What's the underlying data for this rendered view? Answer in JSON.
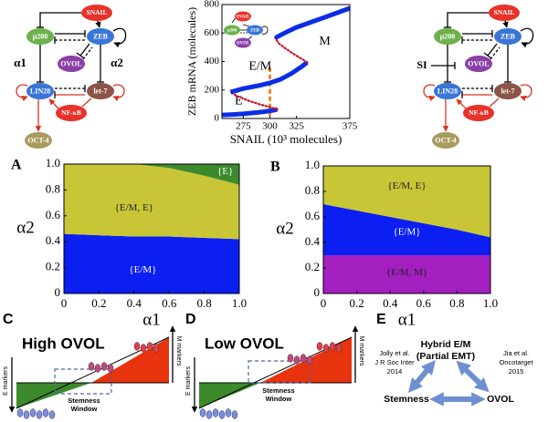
{
  "left_network": {
    "nodes": [
      "SNAIL",
      "μ200",
      "ZEB",
      "OVOL",
      "LIN28",
      "let-7",
      "NF-κB",
      "OCT-4"
    ],
    "edge_labels": [
      "α1",
      "α2"
    ]
  },
  "right_network": {
    "nodes": [
      "SNAIL",
      "μ200",
      "ZEB",
      "OVOL",
      "LIN28",
      "let-7",
      "NF-κB",
      "OCT-4"
    ],
    "input_label": "SI"
  },
  "chart_data": [
    {
      "type": "line",
      "x_label": "SNAIL (10³ molecules)",
      "y_label": "ZEB mRNA (molecules)",
      "xlim": [
        255,
        375
      ],
      "xticks": [
        275,
        300,
        325,
        375
      ],
      "ylim": [
        0,
        800
      ],
      "yticks": [
        0,
        200,
        400,
        600,
        800
      ],
      "series": [
        {
          "name": "E",
          "color": "#0a2ee6",
          "style": "solid",
          "x": [
            255,
            265,
            275,
            285,
            295,
            302,
            307
          ],
          "values": [
            25,
            28,
            33,
            40,
            48,
            56,
            64
          ]
        },
        {
          "color": "#d0112b",
          "style": "dotted",
          "x": [
            307,
            300,
            290,
            280,
            270,
            263
          ],
          "values": [
            64,
            80,
            100,
            125,
            155,
            185
          ]
        },
        {
          "name": "E/M",
          "color": "#0a2ee6",
          "style": "solid",
          "x": [
            263,
            275,
            290,
            300,
            310,
            320,
            330,
            335
          ],
          "values": [
            185,
            210,
            232,
            250,
            275,
            315,
            365,
            395
          ]
        },
        {
          "color": "#d0112b",
          "style": "dotted",
          "x": [
            335,
            325,
            315,
            308,
            305
          ],
          "values": [
            395,
            440,
            490,
            530,
            565
          ]
        },
        {
          "name": "M",
          "color": "#0a2ee6",
          "style": "solid",
          "x": [
            305,
            315,
            325,
            340,
            355,
            375
          ],
          "values": [
            565,
            605,
            640,
            680,
            720,
            775
          ]
        }
      ],
      "vline": {
        "x": 300,
        "y": [
          20,
          370
        ],
        "color": "#f0892b"
      },
      "inset_nodes": [
        "SNAIL",
        "μ200",
        "ZEB",
        "OVOL"
      ]
    },
    {
      "type": "area",
      "panel_label": "A",
      "x_label": "α1",
      "y_label": "α2",
      "x": [
        0,
        0.2,
        0.4,
        0.6,
        0.8,
        1
      ],
      "xlim": [
        0,
        1
      ],
      "ylim": [
        0,
        1
      ],
      "xticks": [
        0,
        0.2,
        0.4,
        0.6,
        0.8,
        {
          "value": 1,
          "label": "1.0"
        }
      ],
      "yticks": [
        0,
        0.2,
        0.4,
        0.6,
        0.8,
        {
          "value": 1,
          "label": "1.0"
        }
      ],
      "series": [
        {
          "name": "{E/M}",
          "color": "#0b1ff2",
          "label_color": "#ffffff",
          "values": [
            0.46,
            0.45,
            0.44,
            0.44,
            0.43,
            0.42
          ]
        },
        {
          "name": "{E/M, E}",
          "color": "#c8c637",
          "label_color": "#222222",
          "values": [
            1,
            1,
            1,
            0.97,
            0.91,
            0.84
          ]
        },
        {
          "name": "{E}",
          "color": "#3d8a2d",
          "label_color": "#ffffff",
          "values": [
            1,
            1,
            1,
            1,
            1,
            1
          ]
        }
      ]
    },
    {
      "type": "area",
      "panel_label": "B",
      "x_label": "α1",
      "y_label": "α2",
      "x": [
        0,
        0.2,
        0.4,
        0.6,
        0.8,
        1
      ],
      "xlim": [
        0,
        1
      ],
      "ylim": [
        0,
        1
      ],
      "xticks": [
        0,
        0.2,
        0.4,
        0.6,
        0.8,
        {
          "value": 1,
          "label": "1.0"
        }
      ],
      "yticks": [
        0,
        0.2,
        0.4,
        0.6,
        0.8,
        {
          "value": 1,
          "label": "1.0"
        }
      ],
      "series": [
        {
          "name": "{E/M, M}",
          "color": "#a41fbf",
          "label_color": "#222222",
          "values": [
            0.3,
            0.3,
            0.3,
            0.3,
            0.3,
            0.3
          ]
        },
        {
          "name": "{E/M}",
          "color": "#0b1ff2",
          "label_color": "#ffffff",
          "values": [
            0.7,
            0.65,
            0.6,
            0.55,
            0.5,
            0.44
          ]
        },
        {
          "name": "{E/M, E}",
          "color": "#c8c637",
          "label_color": "#222222",
          "values": [
            1,
            1,
            1,
            1,
            1,
            1
          ]
        }
      ]
    }
  ],
  "panel_c": {
    "label": "C",
    "title": "High OVOL",
    "y_label": "E markers",
    "end_label": "M markers",
    "window_label": [
      "Stemness",
      "Window"
    ]
  },
  "panel_d": {
    "label": "D",
    "title": "Low OVOL",
    "y_label": "E markers",
    "end_label": "M markers",
    "window_label": [
      "Stemness",
      "Window"
    ]
  },
  "panel_e": {
    "label": "E",
    "top": [
      "Hybrid E/M",
      "(Partial EMT)"
    ],
    "left": "Stemness",
    "right": "OVOL",
    "left_citation": [
      "Jolly et al.",
      "J R Soc Inter",
      "2014"
    ],
    "right_citation": [
      "Jia et al.",
      "Oncotarget",
      "2015"
    ]
  }
}
